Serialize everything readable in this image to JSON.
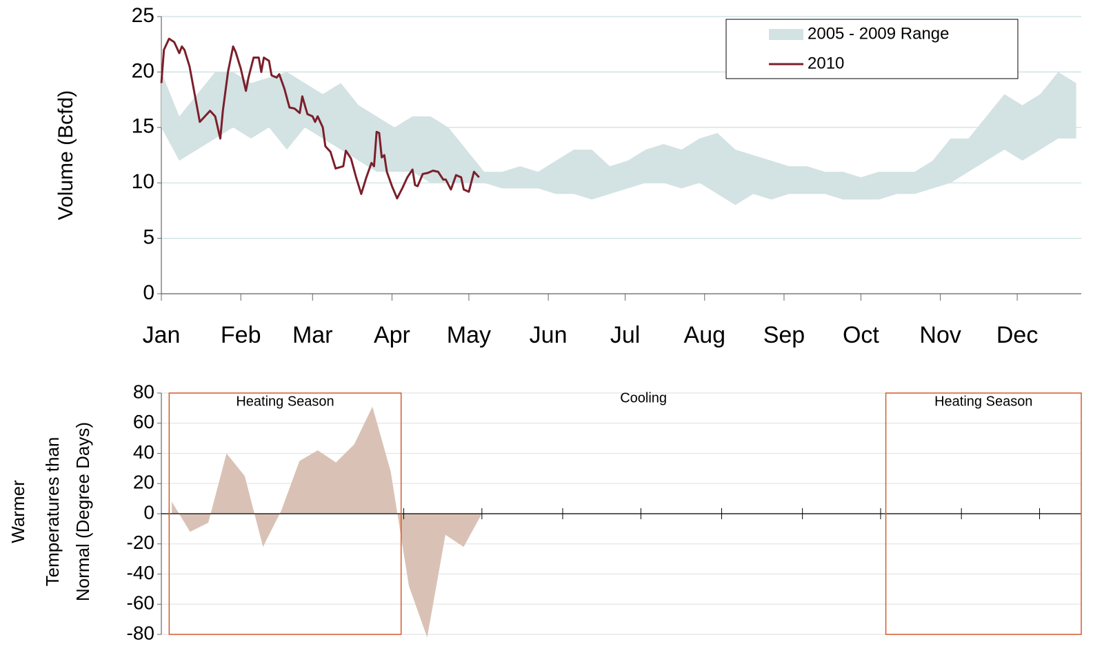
{
  "chart_data": [
    {
      "type": "range-line",
      "ylabel": "Volume (Bcfd)",
      "xlim": [
        1,
        360
      ],
      "ylim": [
        0,
        25
      ],
      "yticks": [
        0,
        5,
        10,
        15,
        20,
        25
      ],
      "grid": true,
      "xticks": [
        {
          "value": 1,
          "label": "Jan"
        },
        {
          "value": 32,
          "label": "Feb"
        },
        {
          "value": 60,
          "label": "Mar"
        },
        {
          "value": 91,
          "label": "Apr"
        },
        {
          "value": 121,
          "label": "May"
        },
        {
          "value": 152,
          "label": "Jun"
        },
        {
          "value": 182,
          "label": "Jul"
        },
        {
          "value": 213,
          "label": "Aug"
        },
        {
          "value": 244,
          "label": "Sep"
        },
        {
          "value": 274,
          "label": "Oct"
        },
        {
          "value": 305,
          "label": "Nov"
        },
        {
          "value": 335,
          "label": "Dec"
        }
      ],
      "legend": "top-right",
      "series": [
        {
          "name": "2005 - 2009 Range",
          "color": "#d3e2e3",
          "x": [
            1,
            8,
            15,
            22,
            29,
            36,
            43,
            50,
            57,
            64,
            71,
            78,
            85,
            92,
            99,
            106,
            113,
            120,
            127,
            134,
            141,
            148,
            155,
            162,
            169,
            176,
            183,
            190,
            197,
            204,
            211,
            218,
            225,
            232,
            239,
            246,
            253,
            260,
            267,
            274,
            281,
            288,
            295,
            302,
            309,
            316,
            323,
            330,
            337,
            344,
            351,
            358
          ],
          "low": [
            15,
            12,
            13,
            14,
            15,
            14,
            15,
            13,
            15,
            14,
            13,
            12,
            11,
            11,
            11,
            10,
            10,
            10,
            10,
            9.5,
            9.5,
            9.5,
            9,
            9,
            8.5,
            9,
            9.5,
            10,
            10,
            9.5,
            10,
            9,
            8,
            9,
            8.5,
            9,
            9,
            9,
            8.5,
            8.5,
            8.5,
            9,
            9,
            9.5,
            10,
            11,
            12,
            13,
            12,
            13,
            14,
            14
          ],
          "high": [
            20,
            16,
            18,
            20,
            20,
            19,
            19.5,
            20,
            19,
            18,
            19,
            17,
            16,
            15,
            16,
            16,
            15,
            13,
            11,
            11,
            11.5,
            11,
            12,
            13,
            13,
            11.5,
            12,
            13,
            13.5,
            13,
            14,
            14.5,
            13,
            12.5,
            12,
            11.5,
            11.5,
            11,
            11,
            10.5,
            11,
            11,
            11,
            12,
            14,
            14,
            16,
            18,
            17,
            18,
            20,
            19
          ]
        },
        {
          "name": "2010",
          "color": "#7b1f2a",
          "x": [
            1,
            2,
            4,
            6,
            8,
            9,
            10,
            12,
            14,
            16,
            18,
            20,
            22,
            24,
            25,
            27,
            29,
            30,
            32,
            34,
            35,
            37,
            39,
            40,
            41,
            43,
            44,
            46,
            47,
            49,
            51,
            53,
            55,
            56,
            58,
            60,
            61,
            62,
            64,
            65,
            67,
            69,
            72,
            73,
            75,
            77,
            79,
            81,
            83,
            84,
            85,
            86,
            87,
            88,
            89,
            91,
            93,
            95,
            97,
            99,
            100,
            101,
            103,
            105,
            107,
            109,
            111,
            112,
            114,
            116,
            118,
            119,
            121,
            123,
            125
          ],
          "values": [
            19,
            22,
            23,
            22.7,
            21.7,
            22.3,
            22,
            20.5,
            18,
            15.5,
            16,
            16.5,
            16,
            14,
            16.5,
            20,
            22.3,
            21.8,
            20.3,
            18.3,
            19.5,
            21.3,
            21.3,
            20,
            21.3,
            21,
            19.7,
            19.5,
            19.8,
            18.5,
            16.8,
            16.7,
            16.3,
            17.8,
            16.2,
            16,
            15.5,
            16,
            15,
            13.3,
            12.8,
            11.3,
            11.5,
            12.9,
            12.2,
            10.5,
            9,
            10.5,
            11.8,
            11.5,
            14.6,
            14.5,
            12.3,
            12.5,
            11,
            9.7,
            8.6,
            9.5,
            10.5,
            11.2,
            9.8,
            9.7,
            10.8,
            10.9,
            11.1,
            11,
            10.3,
            10.3,
            9.4,
            10.7,
            10.5,
            9.4,
            9.2,
            11,
            10.5
          ]
        }
      ]
    },
    {
      "type": "area",
      "ylabel": [
        "Warmer",
        "Temperatures than",
        "Normal (Degree Days)"
      ],
      "xlim": [
        -2,
        351
      ],
      "xticks": [
        1,
        91,
        121,
        152,
        182,
        213,
        244,
        274,
        305,
        335
      ],
      "ylim": [
        -80,
        80
      ],
      "yticks": [
        -80,
        -60,
        -40,
        -20,
        0,
        20,
        40,
        60,
        80
      ],
      "grid": true,
      "color": "#d9c2b5",
      "x": [
        2,
        9,
        16,
        23,
        30,
        37,
        44,
        51,
        58,
        65,
        72,
        79,
        86,
        93,
        100,
        107,
        114,
        121
      ],
      "values": [
        8,
        -12,
        -6,
        40,
        25,
        -22,
        2,
        35,
        42,
        34,
        46,
        71,
        28,
        -48,
        -82,
        -14,
        -22,
        0
      ],
      "annotations": [
        {
          "text": "Heating Season",
          "start": 1,
          "end": 90,
          "color": "#d55a2a"
        },
        {
          "text": "Cooling",
          "color": "#8ab0c8"
        },
        {
          "text": "Heating Season",
          "start": 276,
          "end": 351,
          "color": "#d55a2a"
        }
      ]
    }
  ]
}
